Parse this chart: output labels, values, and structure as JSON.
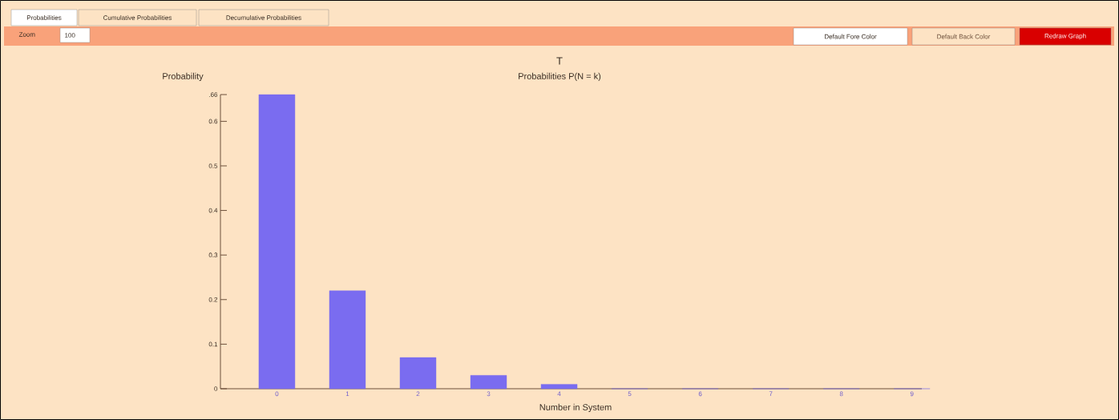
{
  "chart_data": {
    "type": "bar",
    "title": "T",
    "subtitle": "Probabilities P(N = k)",
    "xlabel": "Number in System",
    "ylabel": "Probability",
    "categories": [
      "0",
      "1",
      "2",
      "3",
      "4",
      "5",
      "6",
      "7",
      "8",
      "9"
    ],
    "values": [
      0.66,
      0.22,
      0.07,
      0.03,
      0.01,
      0,
      0,
      0,
      0,
      0
    ],
    "color": "#7a6cf0",
    "ylim": [
      0,
      0.66
    ],
    "yticks": [
      0,
      0.1,
      0.2,
      0.3,
      0.4,
      0.5,
      0.6,
      {
        "value": 0.66,
        "label": ".66"
      }
    ],
    "annotations": [
      "Probabilities",
      "Cumulative Probabilities",
      "Decumulative Probabilities",
      "Zoom",
      "100",
      "Default Fore Color",
      "Default Back Color",
      "Redraw Graph"
    ]
  }
}
